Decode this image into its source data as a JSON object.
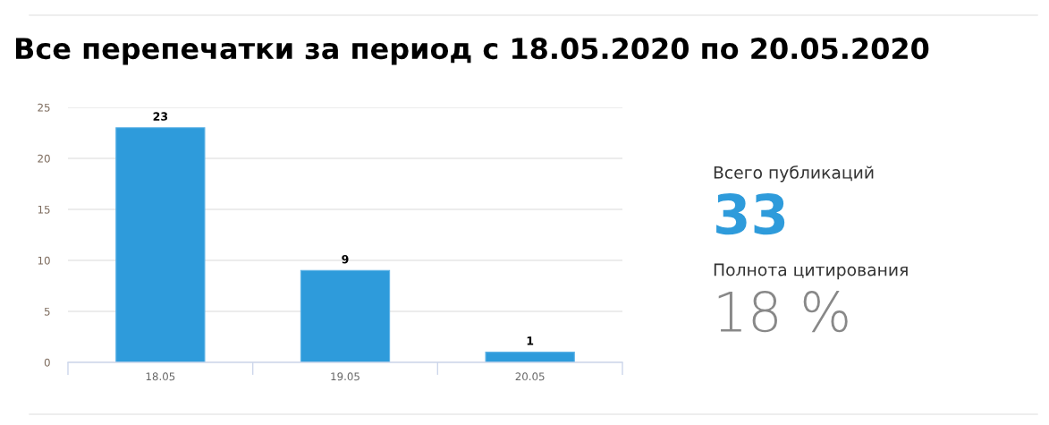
{
  "chart_data": [
    {
      "type": "bar",
      "title": "Все перепечатки за период с 18.05.2020 по 20.05.2020",
      "categories": [
        "18.05",
        "19.05",
        "20.05"
      ],
      "values": [
        23,
        9,
        1
      ],
      "color": "#2e9bdb",
      "ylim": [
        0,
        25
      ],
      "yticks": [
        0,
        5,
        10,
        15,
        20,
        25
      ],
      "grid": "y",
      "data_labels": true
    },
    {
      "type": "other",
      "annotations": [
        "Всего публикаций",
        "33",
        "Полнота цитирования",
        "18 %"
      ],
      "colors": [
        "#333333",
        "#2e9bdb",
        "#333333",
        "#888888"
      ]
    }
  ]
}
